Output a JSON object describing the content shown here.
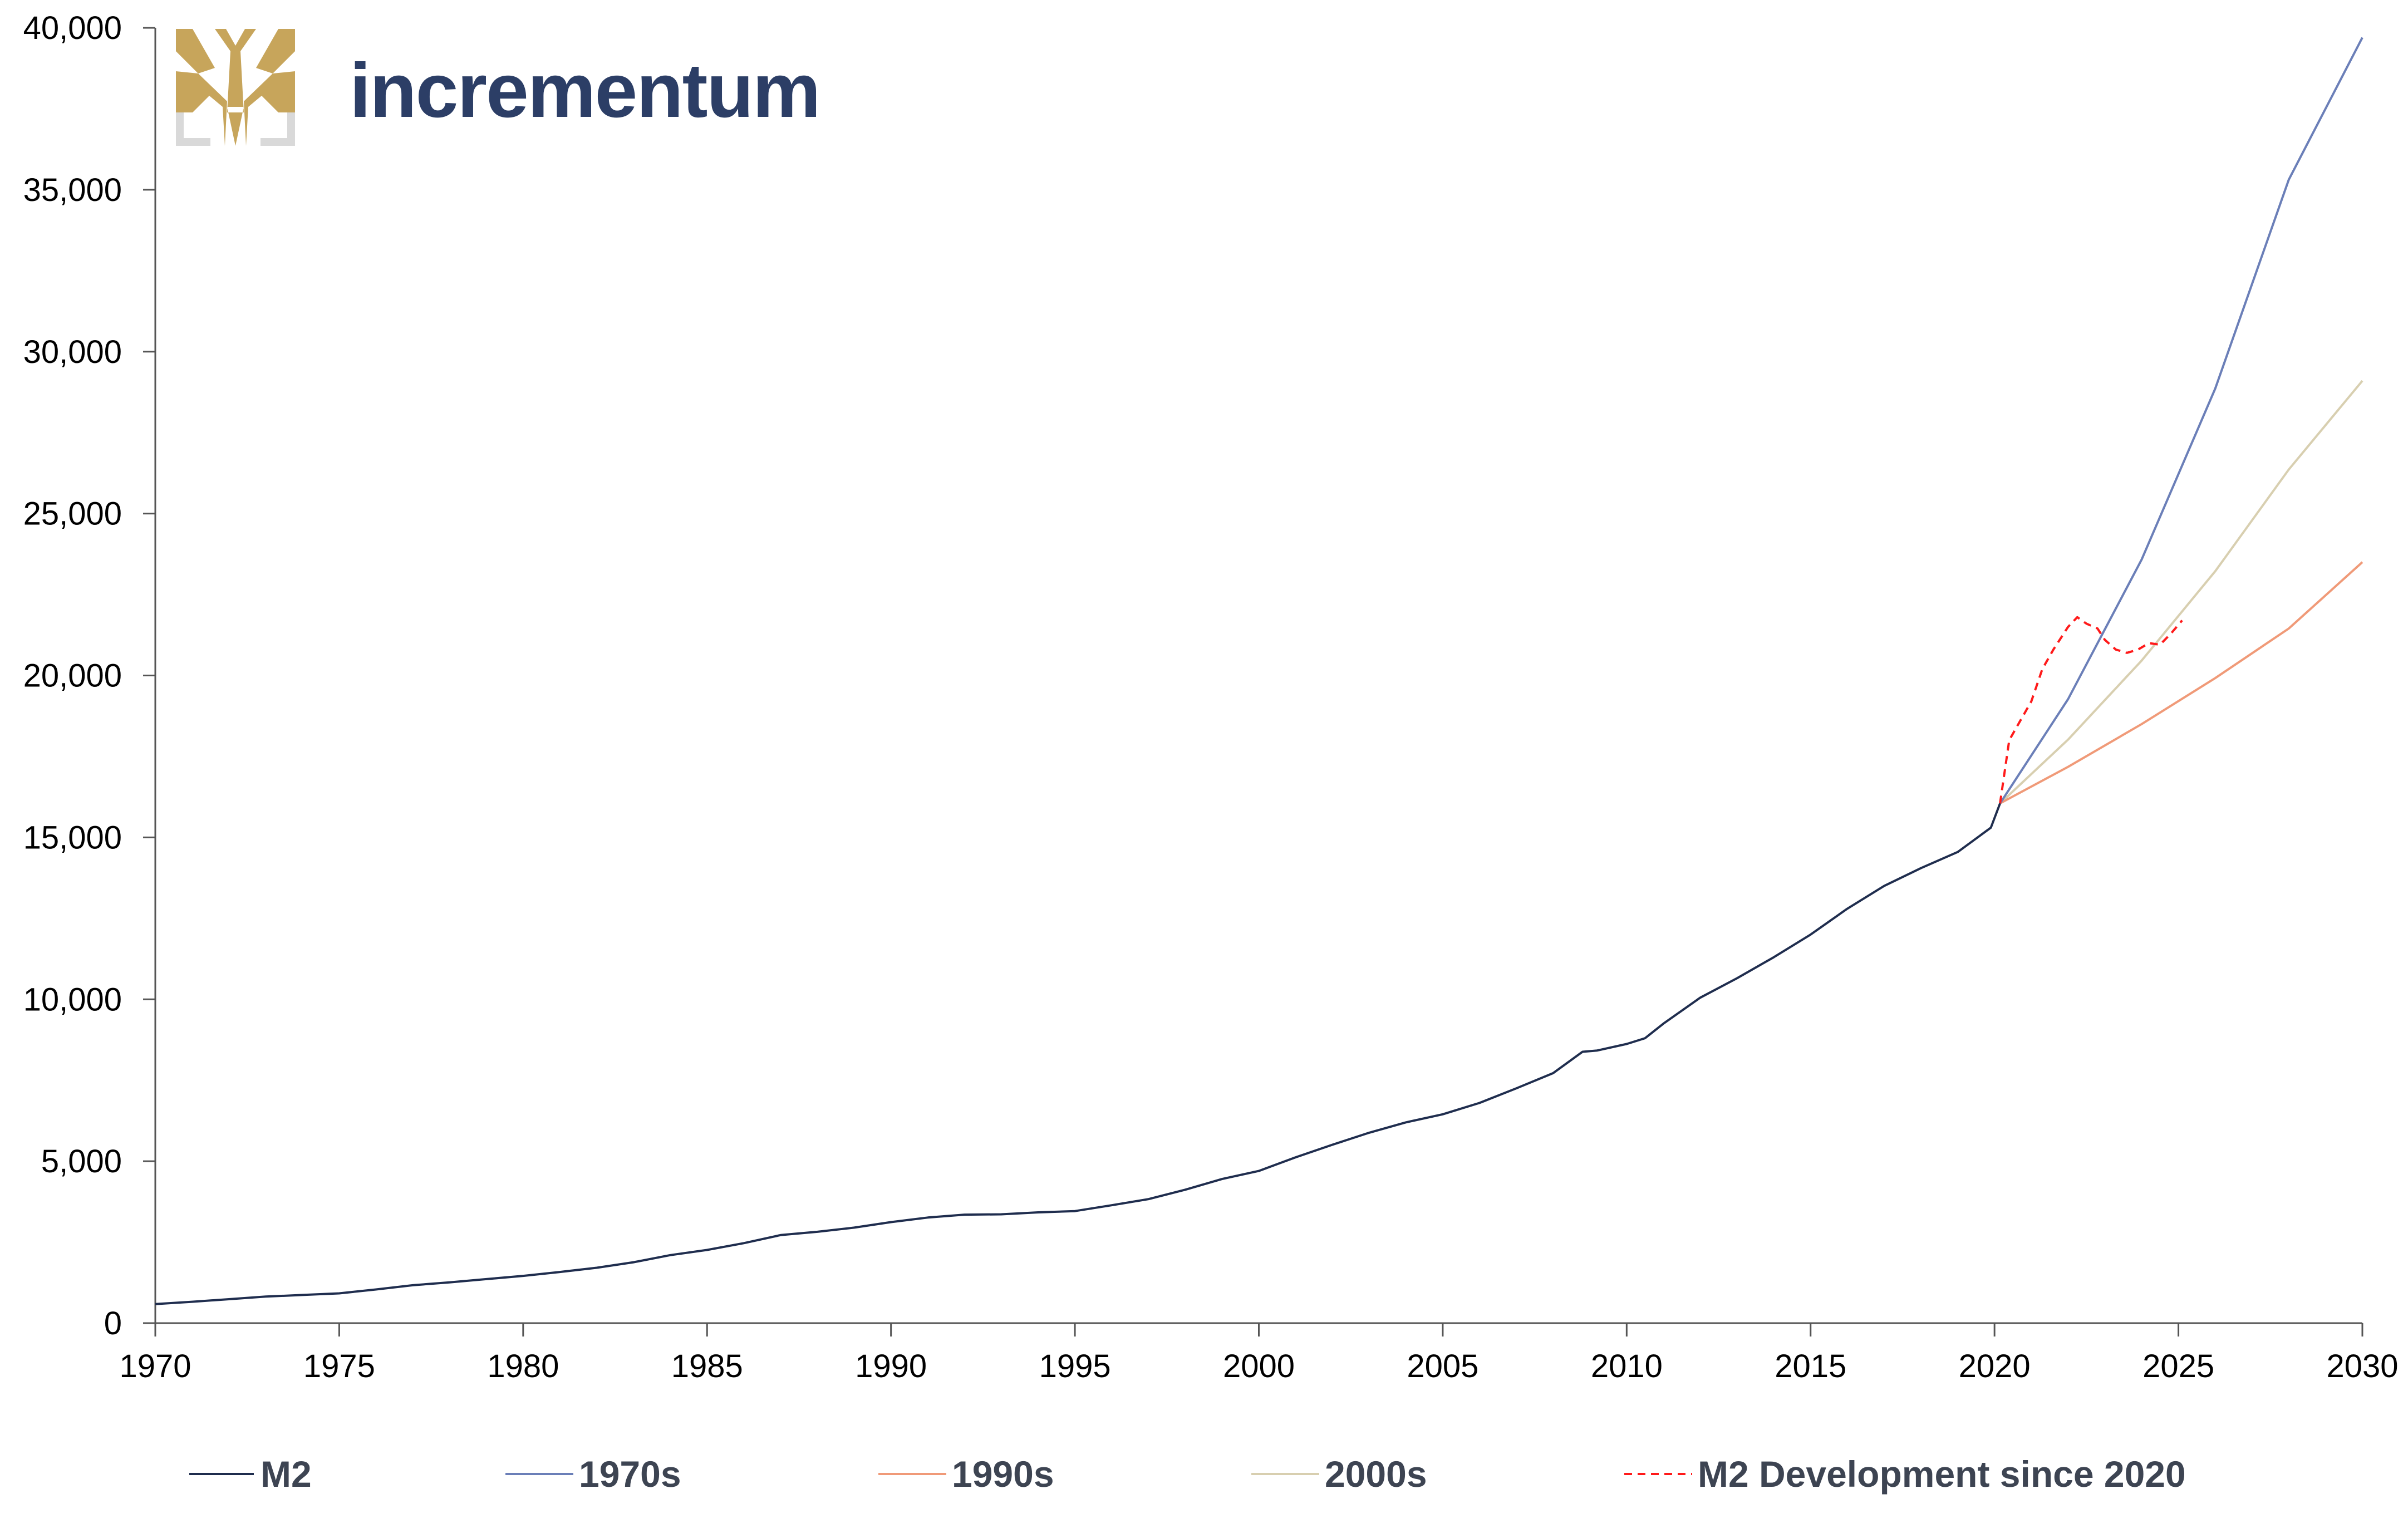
{
  "brand": {
    "name": "incrementum",
    "logo_icon": "tree-icon"
  },
  "colors": {
    "m2": "#1f2d4e",
    "s1970": "#6b7fb8",
    "s1990": "#f09a78",
    "s2000": "#d8cfb0",
    "m2dev": "#ff1a1a",
    "brand_gold": "#c7a55b",
    "brand_navy": "#2c3e66"
  },
  "chart_data": {
    "type": "line",
    "title": "",
    "xlabel": "",
    "ylabel": "",
    "xlim": [
      1970,
      2030
    ],
    "ylim": [
      0,
      40000
    ],
    "x_ticks": [
      "1970",
      "1975",
      "1980",
      "1985",
      "1990",
      "1995",
      "2000",
      "2005",
      "2010",
      "2015",
      "2020",
      "2025",
      "2030"
    ],
    "y_ticks": [
      "0",
      "5,000",
      "10,000",
      "15,000",
      "20,000",
      "25,000",
      "30,000",
      "35,000",
      "40,000"
    ],
    "grid": false,
    "legend_position": "bottom",
    "series": [
      {
        "name": "M2",
        "style": "solid",
        "x": [
          1970,
          1971,
          1972,
          1973,
          1974,
          1975,
          1976,
          1977,
          1978,
          1979,
          1980,
          1981,
          1982,
          1983,
          1984,
          1985,
          1986,
          1987,
          1988,
          1989,
          1990,
          1991,
          1992,
          1993,
          1994,
          1995,
          1996,
          1997,
          1998,
          1999,
          2000,
          2001,
          2002,
          2003,
          2004,
          2005,
          2006,
          2007,
          2008,
          2008.8,
          2009.2,
          2010,
          2010.5,
          2011,
          2012,
          2013,
          2014,
          2015,
          2016,
          2017,
          2018,
          2019,
          2019.9,
          2020.15
        ],
        "values": [
          590,
          660,
          740,
          820,
          870,
          920,
          1040,
          1170,
          1260,
          1360,
          1460,
          1580,
          1710,
          1880,
          2100,
          2260,
          2470,
          2720,
          2820,
          2950,
          3120,
          3260,
          3350,
          3360,
          3420,
          3460,
          3640,
          3830,
          4120,
          4450,
          4700,
          5120,
          5510,
          5880,
          6200,
          6450,
          6800,
          7250,
          7720,
          8380,
          8420,
          8620,
          8800,
          9250,
          10050,
          10650,
          11300,
          12000,
          12800,
          13500,
          14050,
          14550,
          15300,
          16050
        ]
      },
      {
        "name": "1970s",
        "style": "solid",
        "x": [
          2020.15,
          2022,
          2024,
          2026,
          2028,
          2030
        ],
        "values": [
          16050,
          19270,
          23580,
          28860,
          35310,
          39700
        ]
      },
      {
        "name": "1990s",
        "style": "solid",
        "x": [
          2020.15,
          2022,
          2024,
          2026,
          2028,
          2030
        ],
        "values": [
          16050,
          17180,
          18500,
          19920,
          21450,
          23500
        ]
      },
      {
        "name": "2000s",
        "style": "solid",
        "x": [
          2020.15,
          2022,
          2024,
          2026,
          2028,
          2030
        ],
        "values": [
          16050,
          18020,
          20460,
          23220,
          26360,
          29100
        ]
      },
      {
        "name": "M2 Development since 2020",
        "style": "dashed",
        "x": [
          2020.15,
          2020.4,
          2020.7,
          2021,
          2021.3,
          2021.6,
          2022,
          2022.25,
          2022.5,
          2022.8,
          2023,
          2023.3,
          2023.6,
          2023.9,
          2024.2,
          2024.5,
          2024.8,
          2025.1
        ],
        "values": [
          16050,
          18000,
          18600,
          19200,
          20200,
          20800,
          21500,
          21800,
          21600,
          21450,
          21100,
          20800,
          20700,
          20800,
          21000,
          20950,
          21300,
          21700
        ]
      }
    ]
  }
}
